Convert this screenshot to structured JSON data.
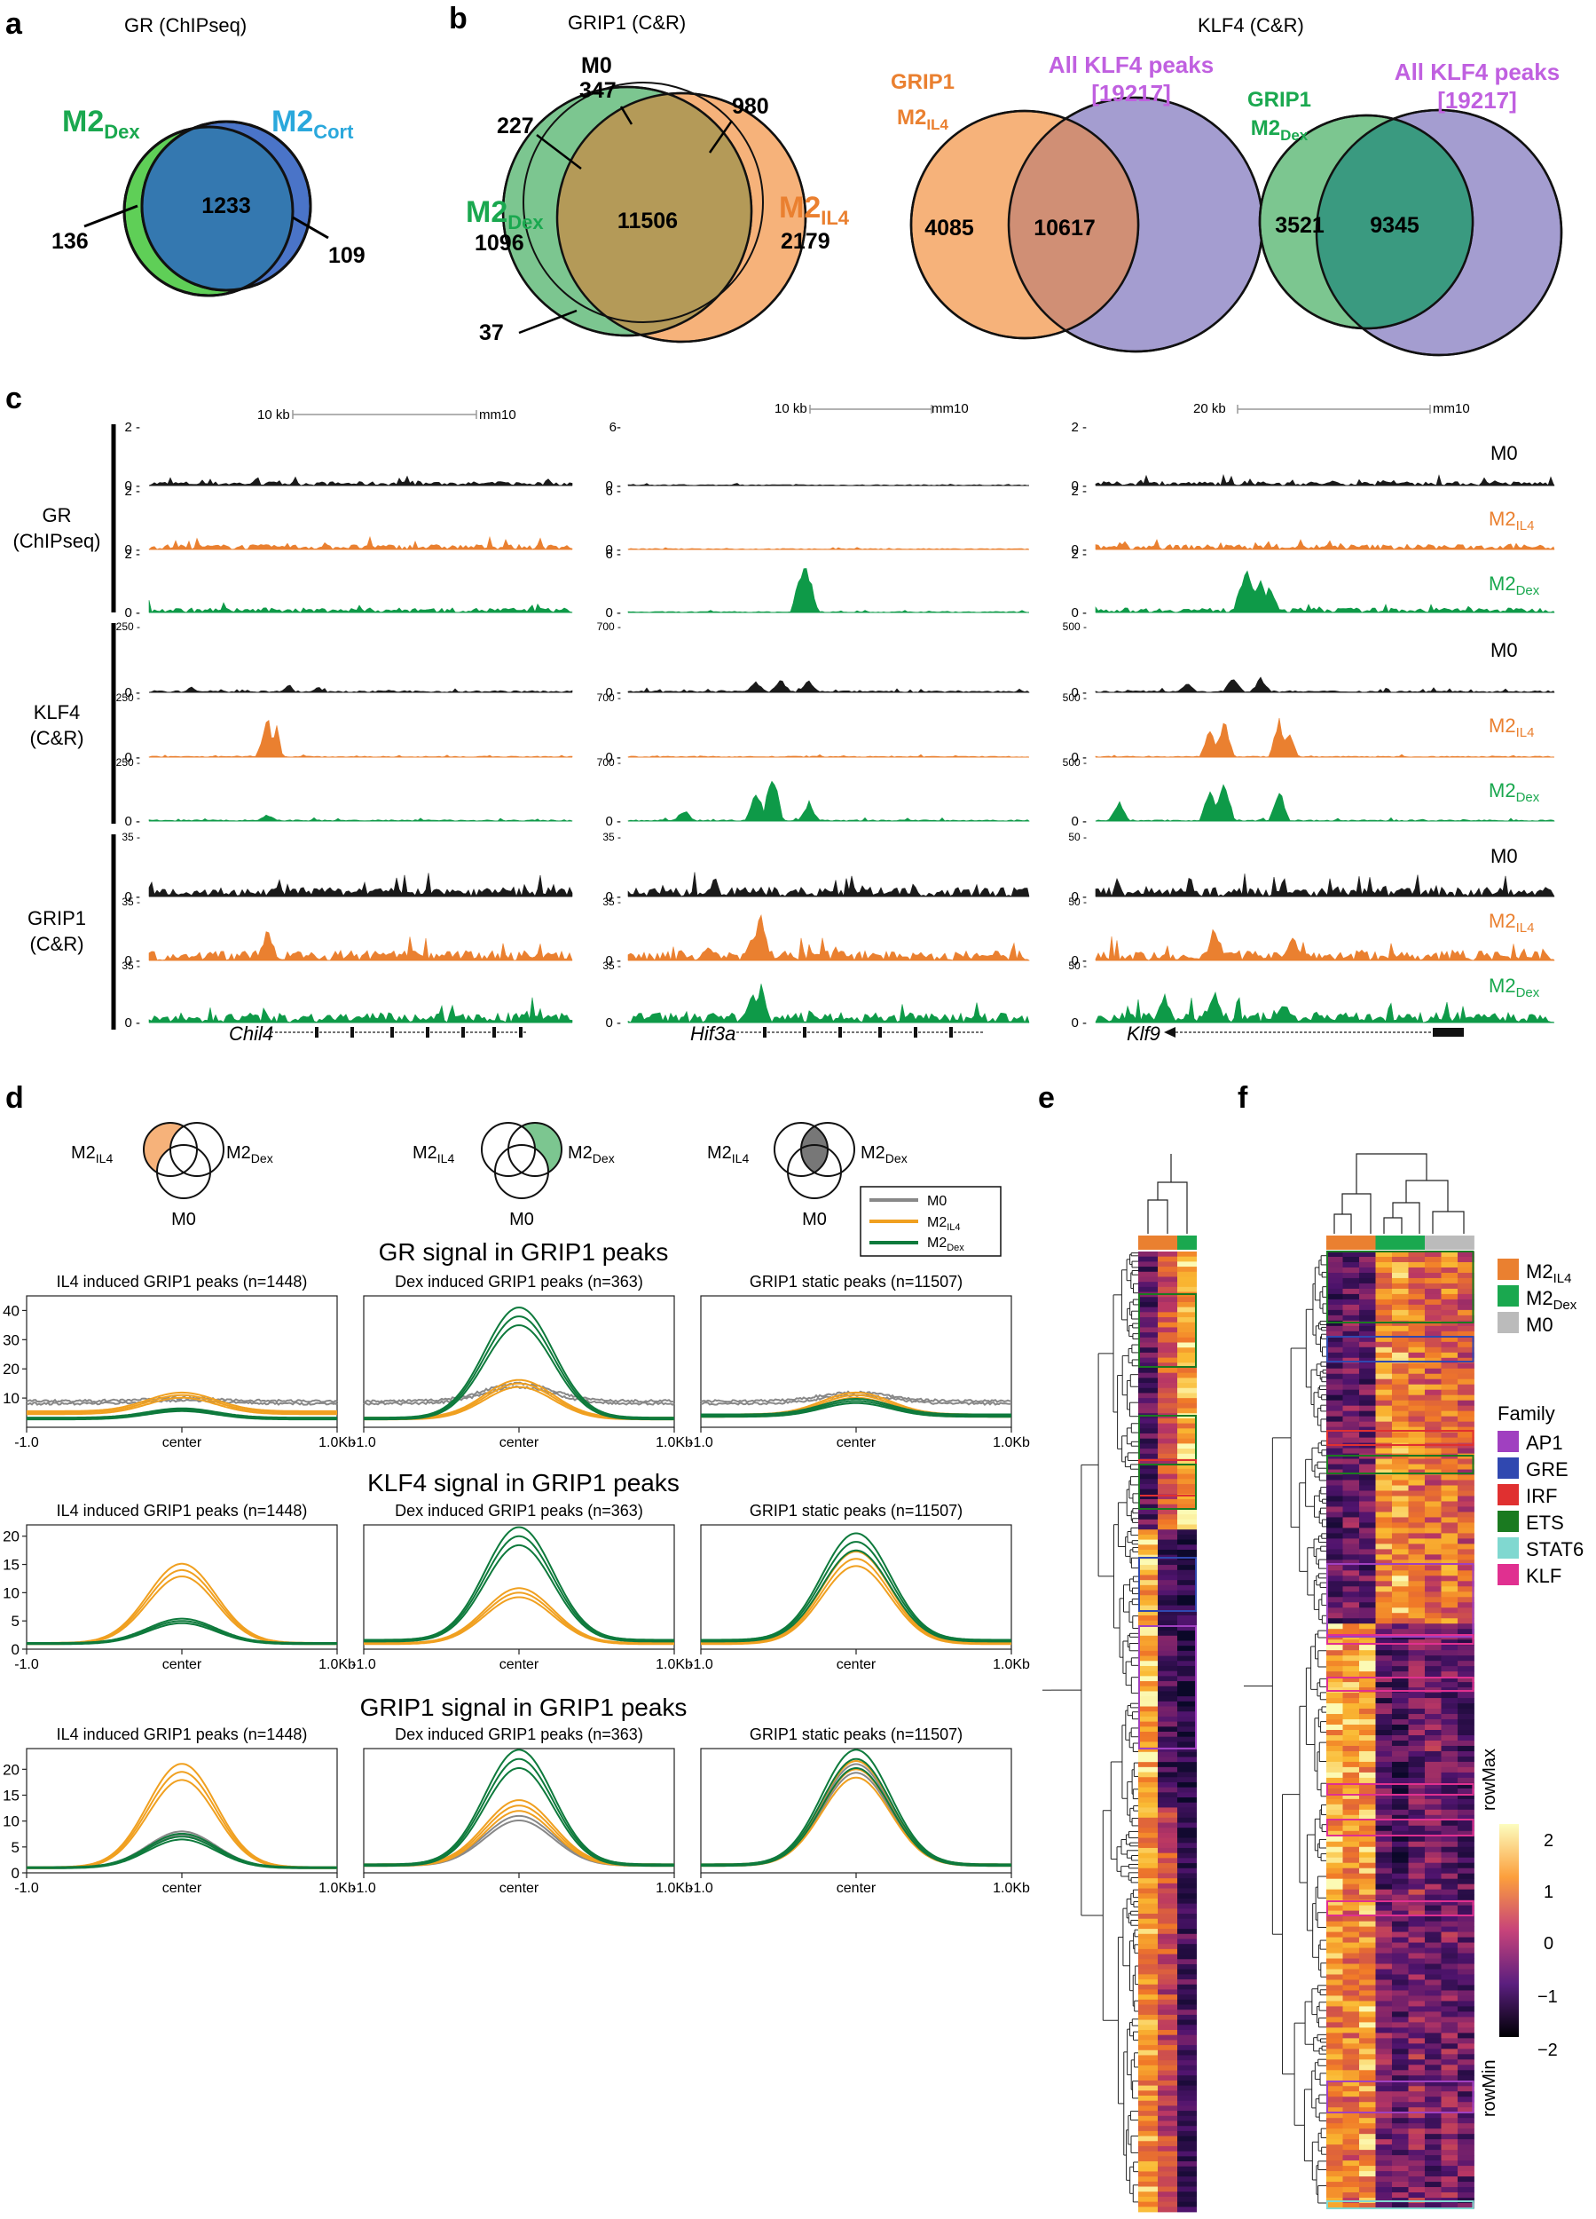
{
  "colors": {
    "m0": "#222222",
    "il4": "#ea8030",
    "dex": "#0e9a48",
    "dexText": "#1aa84f",
    "cortText": "#2aa8dc",
    "klf4Text": "#c060e0",
    "venn_dex": "#5fcf57",
    "venn_blue": "#3a70b8",
    "venn_cort": "#4a74c8",
    "venn_il4": "#f6b27a",
    "venn_purple": "#9c95cc"
  },
  "panels": {
    "a": "a",
    "b": "b",
    "c": "c",
    "d": "d",
    "e": "e",
    "f": "f"
  },
  "panel_a": {
    "title": "GR (ChIPseq)",
    "left_main": "M2",
    "left_sub": "Dex",
    "right_main": "M2",
    "right_sub": "Cort",
    "overlap": "1233",
    "left_only": "136",
    "right_only": "109"
  },
  "panel_b": {
    "grip_title": "GRIP1 (C&R)",
    "klf_title": "KLF4 (C&R)",
    "m0_label": "M0",
    "m0_count": "347",
    "n980": "980",
    "n227": "227",
    "n37": "37",
    "dex_main": "M2",
    "dex_sub": "Dex",
    "dex_count": "1096",
    "il4_main": "M2",
    "il4_sub": "IL4",
    "il4_count": "2179",
    "center": "11506",
    "v2_left_l1": "GRIP1",
    "v2_left_main": "M2",
    "v2_left_sub": "IL4",
    "v2_right_l1": "All KLF4 peaks",
    "v2_right_l2": "[19217]",
    "v2_left": "4085",
    "v2_overlap": "10617",
    "v3_left_l1": "GRIP1",
    "v3_left_main": "M2",
    "v3_left_sub": "Dex",
    "v3_right_l1": "All KLF4 peaks",
    "v3_right_l2": "[19217]",
    "v3_left": "3521",
    "v3_overlap": "9345"
  },
  "panel_c": {
    "scales": [
      "10 kb",
      "10 kb",
      "20 kb"
    ],
    "assembly": "mm10",
    "groups": [
      {
        "l1": "GR",
        "l2": "(ChIPseq)"
      },
      {
        "l1": "KLF4",
        "l2": "(C&R)"
      },
      {
        "l1": "GRIP1",
        "l2": "(C&R)"
      }
    ],
    "genes": [
      "Chil4",
      "Hif3a",
      "Klf9"
    ],
    "tracks": {
      "m0": "M0",
      "il4_main": "M2",
      "il4_sub": "IL4",
      "dex_main": "M2",
      "dex_sub": "Dex"
    },
    "ticks": {
      "gr": [
        [
          "2 -",
          "6-",
          "2 -"
        ],
        [
          "0 -",
          "0 -",
          "0 -"
        ],
        [
          "2 -",
          "6 -",
          "2 -"
        ],
        [
          "0 -",
          "0 -",
          "0 -"
        ],
        [
          "2 -",
          "6 -",
          "2 -"
        ],
        [
          "0 -",
          "0 -",
          "0 -"
        ]
      ],
      "klf": [
        [
          "250 -",
          "700 -",
          "500 -"
        ],
        [
          "0 -",
          "0 -",
          "0 -"
        ],
        [
          "250 -",
          "700 -",
          "500 -"
        ],
        [
          "0 -",
          "0 -",
          "0 -"
        ],
        [
          "250 -",
          "700 -",
          "500 -"
        ],
        [
          "0 -",
          "0 -",
          "0 -"
        ]
      ],
      "grip": [
        [
          "35 -",
          "35 -",
          "50 -"
        ],
        [
          "0 -",
          "0 -",
          "0 -"
        ],
        [
          "35 -",
          "35 -",
          "50 -"
        ],
        [
          "0 -",
          "0 -",
          "0 -"
        ],
        [
          "35 -",
          "35 -",
          "50 -"
        ],
        [
          "0 -",
          "0 -",
          "0 -"
        ]
      ]
    }
  },
  "panel_d": {
    "venn_left": {
      "main": "M2",
      "sub": "IL4"
    },
    "venn_right": {
      "main": "M2",
      "sub": "Dex"
    },
    "venn_bottom": "M0",
    "legend": [
      {
        "main": "M0",
        "sub": ""
      },
      {
        "main": "M2",
        "sub": "IL4"
      },
      {
        "main": "M2",
        "sub": "Dex"
      }
    ],
    "group_titles": [
      "GR signal in GRIP1 peaks",
      "KLF4 signal in GRIP1 peaks",
      "GRIP1 signal in GRIP1 peaks"
    ],
    "plot_titles": [
      "IL4 induced GRIP1 peaks (n=1448)",
      "Dex induced GRIP1 peaks (n=363)",
      "GRIP1 static peaks (n=11507)"
    ],
    "x_labels": [
      "-1.0",
      "center",
      "1.0Kb"
    ],
    "y_ticks": [
      [
        "40",
        "30",
        "20",
        "10"
      ],
      [
        "20",
        "15",
        "10",
        "5",
        "0"
      ],
      [
        "20",
        "15",
        "10",
        "5",
        "0"
      ]
    ]
  },
  "panel_f": {
    "legend_groups": [
      {
        "main": "M2",
        "sub": "IL4"
      },
      {
        "main": "M2",
        "sub": "Dex"
      },
      {
        "main": "M0",
        "sub": ""
      }
    ],
    "family_title": "Family",
    "families": [
      "AP1",
      "GRE",
      "IRF",
      "ETS",
      "STAT6",
      "KLF"
    ],
    "family_colors": [
      "#a040c0",
      "#3048b0",
      "#e03030",
      "#1a7a20",
      "#80d8d0",
      "#e03090"
    ],
    "colorbar_ticks": [
      "2",
      "1",
      "0",
      "−1",
      "−2"
    ],
    "colorbar_max": "rowMax",
    "colorbar_min": "rowMin"
  },
  "chart_data": [
    {
      "type": "line",
      "title": "GR signal in GRIP1 peaks — IL4 induced GRIP1 peaks (n=1448)",
      "x": [
        -1,
        0,
        1
      ],
      "ylim": [
        0,
        45
      ],
      "series": [
        {
          "name": "M0",
          "peak": 10,
          "base": 9
        },
        {
          "name": "M2IL4",
          "peak": 11,
          "base": 5
        },
        {
          "name": "M2Dex",
          "peak": 6,
          "base": 3
        }
      ]
    },
    {
      "type": "line",
      "title": "GR signal in GRIP1 peaks — Dex induced GRIP1 peaks (n=363)",
      "x": [
        -1,
        0,
        1
      ],
      "ylim": [
        0,
        45
      ],
      "series": [
        {
          "name": "M0",
          "peak": 15,
          "base": 9
        },
        {
          "name": "M2IL4",
          "peak": 15,
          "base": 3
        },
        {
          "name": "M2Dex",
          "peak": 38,
          "base": 3
        }
      ]
    },
    {
      "type": "line",
      "title": "GR signal in GRIP1 peaks — GRIP1 static peaks (n=11507)",
      "x": [
        -1,
        0,
        1
      ],
      "ylim": [
        0,
        45
      ],
      "series": [
        {
          "name": "M0",
          "peak": 12,
          "base": 9
        },
        {
          "name": "M2IL4",
          "peak": 11,
          "base": 4
        },
        {
          "name": "M2Dex",
          "peak": 9,
          "base": 4
        }
      ]
    },
    {
      "type": "line",
      "title": "KLF4 signal in GRIP1 peaks — IL4 induced GRIP1 peaks (n=1448)",
      "x": [
        -1,
        0,
        1
      ],
      "ylim": [
        0,
        22
      ],
      "series": [
        {
          "name": "M2IL4",
          "peak": 14,
          "base": 1
        },
        {
          "name": "M2Dex",
          "peak": 5,
          "base": 1
        }
      ]
    },
    {
      "type": "line",
      "title": "KLF4 signal in GRIP1 peaks — Dex induced GRIP1 peaks (n=363)",
      "x": [
        -1,
        0,
        1
      ],
      "ylim": [
        0,
        22
      ],
      "series": [
        {
          "name": "M2IL4",
          "peak": 10,
          "base": 1
        },
        {
          "name": "M2Dex",
          "peak": 20,
          "base": 1.5
        }
      ]
    },
    {
      "type": "line",
      "title": "KLF4 signal in GRIP1 peaks — GRIP1 static peaks (n=11507)",
      "x": [
        -1,
        0,
        1
      ],
      "ylim": [
        0,
        22
      ],
      "series": [
        {
          "name": "M2IL4",
          "peak": 16,
          "base": 1
        },
        {
          "name": "M2Dex",
          "peak": 19,
          "base": 1.5
        }
      ]
    },
    {
      "type": "line",
      "title": "GRIP1 signal in GRIP1 peaks — IL4 induced GRIP1 peaks (n=1448)",
      "x": [
        -1,
        0,
        1
      ],
      "ylim": [
        0,
        24
      ],
      "series": [
        {
          "name": "M0",
          "peak": 8,
          "base": 1
        },
        {
          "name": "M2IL4",
          "peak": 19.5,
          "base": 1
        },
        {
          "name": "M2Dex",
          "peak": 7,
          "base": 1
        }
      ]
    },
    {
      "type": "line",
      "title": "GRIP1 signal in GRIP1 peaks — Dex induced GRIP1 peaks (n=363)",
      "x": [
        -1,
        0,
        1
      ],
      "ylim": [
        0,
        24
      ],
      "series": [
        {
          "name": "M0",
          "peak": 11,
          "base": 1.5
        },
        {
          "name": "M2IL4",
          "peak": 13,
          "base": 1.5
        },
        {
          "name": "M2Dex",
          "peak": 22,
          "base": 1.5
        }
      ]
    },
    {
      "type": "line",
      "title": "GRIP1 signal in GRIP1 peaks — GRIP1 static peaks (n=11507)",
      "x": [
        -1,
        0,
        1
      ],
      "ylim": [
        0,
        24
      ],
      "series": [
        {
          "name": "M0",
          "peak": 21,
          "base": 1.5
        },
        {
          "name": "M2IL4",
          "peak": 20,
          "base": 1.5
        },
        {
          "name": "M2Dex",
          "peak": 22,
          "base": 1.5
        }
      ]
    }
  ]
}
